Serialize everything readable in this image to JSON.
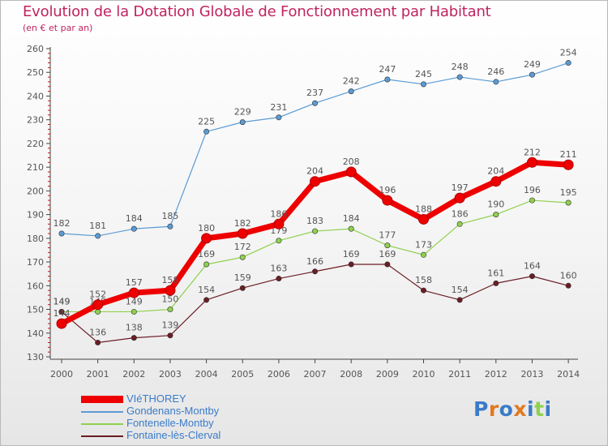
{
  "page": {
    "title": "Evolution de la Dotation Globale de Fonctionnement par Habitant",
    "subtitle": "(en € et par an)",
    "logo_text": "Proxiti"
  },
  "chart_data": {
    "type": "line",
    "title": "Evolution de la Dotation Globale de Fonctionnement par Habitant",
    "subtitle": "(en € et par an)",
    "xlabel": "",
    "ylabel": "",
    "ylim": [
      130,
      260
    ],
    "yticks": [
      130,
      140,
      150,
      160,
      170,
      180,
      190,
      200,
      210,
      220,
      230,
      240,
      250,
      260
    ],
    "categories": [
      "2000",
      "2001",
      "2002",
      "2003",
      "2004",
      "2005",
      "2006",
      "2007",
      "2008",
      "2009",
      "2010",
      "2011",
      "2012",
      "2013",
      "2014"
    ],
    "legend_position": "bottom-left",
    "grid": false,
    "series": [
      {
        "name": "VIéTHOREY",
        "color": "#ee0000",
        "emphasis": true,
        "values": [
          144,
          152,
          157,
          158,
          180,
          182,
          186,
          204,
          208,
          196,
          188,
          197,
          204,
          212,
          211
        ]
      },
      {
        "name": "Gondenans-Montby",
        "color": "#5b9bd5",
        "emphasis": false,
        "values": [
          182,
          181,
          184,
          185,
          225,
          229,
          231,
          237,
          242,
          247,
          245,
          248,
          246,
          249,
          254
        ]
      },
      {
        "name": "Fontenelle-Montby",
        "color": "#8fd14f",
        "emphasis": false,
        "values": [
          149,
          149,
          149,
          150,
          169,
          172,
          179,
          183,
          184,
          177,
          173,
          186,
          190,
          196,
          195
        ]
      },
      {
        "name": "Fontaine-lès-Clerval",
        "color": "#6b1d24",
        "emphasis": false,
        "values": [
          149,
          136,
          138,
          139,
          154,
          159,
          163,
          166,
          169,
          169,
          158,
          154,
          161,
          164,
          160
        ]
      }
    ]
  },
  "colors": {
    "title": "#c0245f",
    "legend_text": "#3a7bc8",
    "axis": "#444444",
    "logo_letters": [
      "#3a7bc8",
      "#e07a1f",
      "#3a7bc8",
      "#e07a1f",
      "#3a7bc8",
      "#8fd14f",
      "#3a7bc8"
    ]
  }
}
